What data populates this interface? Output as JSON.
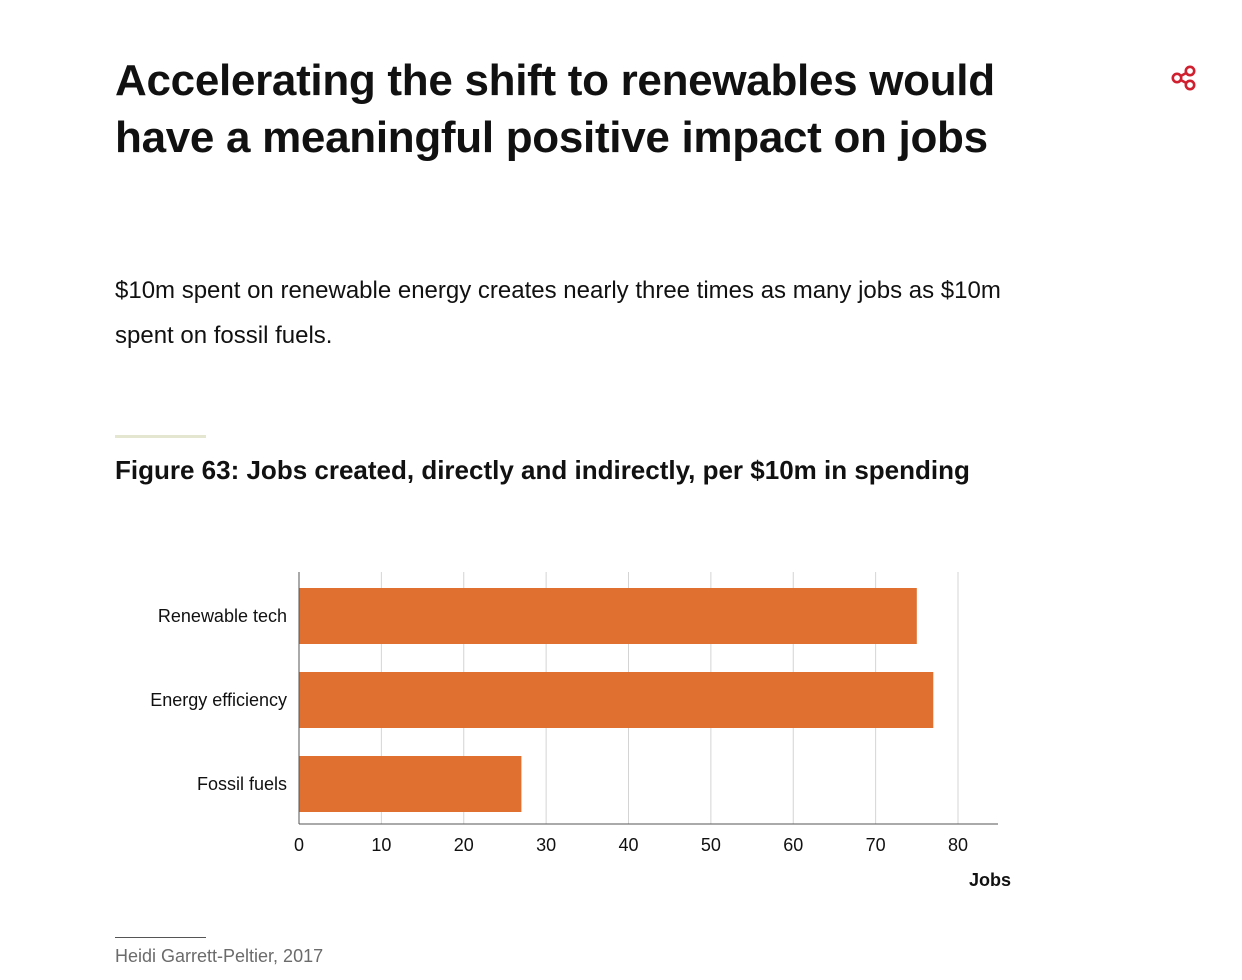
{
  "article": {
    "headline": "Accelerating the shift to renewables would have a meaningful positive impact on jobs",
    "subhead": "$10m spent on renewable energy creates nearly three times as many jobs as $10m spent on fossil fuels.",
    "share_icon": "share-icon",
    "accent_color": "#d0202f"
  },
  "figure": {
    "title": "Figure 63: Jobs created, directly and indirectly, per $10m in spending",
    "source": "Heidi Garrett-Peltier, 2017"
  },
  "chart_data": {
    "type": "bar",
    "orientation": "horizontal",
    "categories": [
      "Renewable tech",
      "Energy efficiency",
      "Fossil fuels"
    ],
    "values": [
      75,
      77,
      27
    ],
    "xlabel": "Jobs",
    "xlim": [
      0,
      85
    ],
    "xticks": [
      0,
      10,
      20,
      30,
      40,
      50,
      60,
      70,
      80
    ],
    "bar_color": "#e0702f",
    "grid": true
  }
}
